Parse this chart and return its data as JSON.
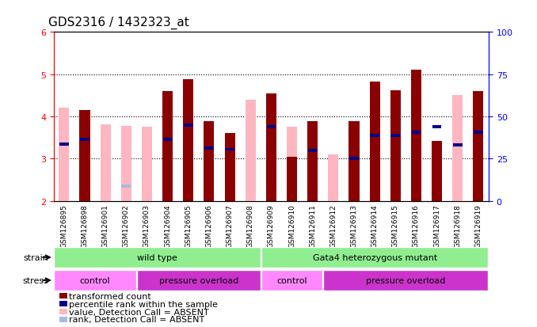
{
  "title": "GDS2316 / 1432323_at",
  "samples": [
    "GSM126895",
    "GSM126898",
    "GSM126901",
    "GSM126902",
    "GSM126903",
    "GSM126904",
    "GSM126905",
    "GSM126906",
    "GSM126907",
    "GSM126908",
    "GSM126909",
    "GSM126910",
    "GSM126911",
    "GSM126912",
    "GSM126913",
    "GSM126914",
    "GSM126915",
    "GSM126916",
    "GSM126917",
    "GSM126918",
    "GSM126919"
  ],
  "red_values": [
    4.2,
    4.15,
    null,
    null,
    null,
    4.6,
    4.88,
    3.88,
    3.6,
    null,
    4.55,
    3.05,
    3.88,
    null,
    3.88,
    4.82,
    4.62,
    5.1,
    3.42,
    null,
    4.6
  ],
  "pink_values": [
    4.2,
    null,
    3.82,
    3.78,
    3.75,
    null,
    null,
    null,
    null,
    4.4,
    null,
    3.75,
    null,
    3.1,
    null,
    null,
    null,
    null,
    null,
    4.5,
    null
  ],
  "blue_values": [
    3.35,
    3.45,
    null,
    null,
    null,
    3.45,
    3.8,
    3.25,
    3.22,
    null,
    3.75,
    null,
    3.2,
    null,
    3.0,
    3.55,
    3.55,
    3.62,
    3.75,
    3.32,
    3.62
  ],
  "lightblue_values": [
    null,
    null,
    null,
    2.35,
    null,
    null,
    null,
    null,
    null,
    null,
    null,
    null,
    null,
    null,
    null,
    null,
    null,
    null,
    null,
    null,
    null
  ],
  "absent_red": [
    true,
    false,
    true,
    true,
    true,
    false,
    false,
    false,
    false,
    true,
    false,
    false,
    false,
    true,
    false,
    false,
    false,
    false,
    false,
    true,
    false
  ],
  "ylim": [
    2,
    6
  ],
  "yticks_left": [
    2,
    3,
    4,
    5,
    6
  ],
  "yticks_right": [
    0,
    25,
    50,
    75,
    100
  ],
  "bar_width": 0.5,
  "red_color": "#8B0000",
  "pink_color": "#FFB6C1",
  "blue_color": "#00008B",
  "lightblue_color": "#AABBDD",
  "bg_color": "#FFFFFF",
  "xticklabel_bg": "#CCCCCC",
  "strain_colors": [
    "#90EE90",
    "#5CD65C"
  ],
  "stress_light": "#FF88FF",
  "stress_dark": "#CC33CC",
  "title_fontsize": 11,
  "label_fontsize": 8,
  "tick_fontsize": 8,
  "legend_fontsize": 8
}
